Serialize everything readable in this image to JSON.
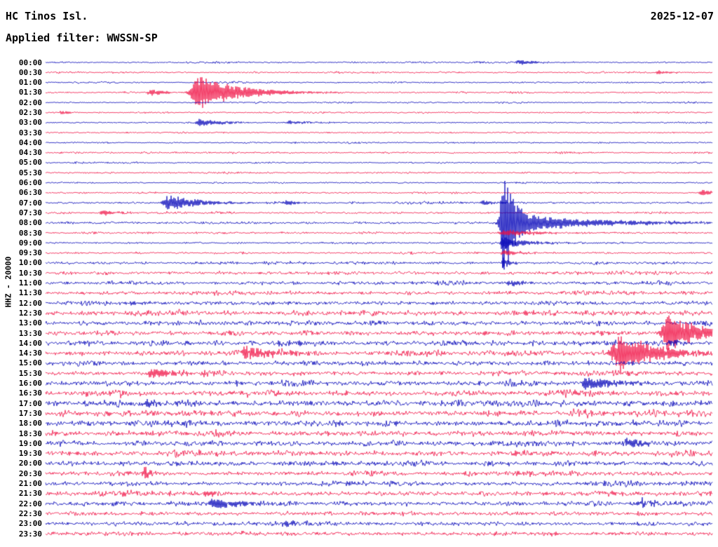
{
  "header": {
    "station": "HC Tinos Isl.",
    "date": "2025-12-07",
    "filter_label": "Applied filter: WWSSN-SP"
  },
  "axis": {
    "left_label": "HHZ - 20000"
  },
  "chart_data": {
    "type": "line",
    "subtype": "helicorder-seismogram",
    "title": "HC Tinos Isl. HHZ helicorder, 2025-12-07, WWSSN-SP filter",
    "rows": 48,
    "minutes_per_row": 30,
    "row_labels": [
      "00:00",
      "00:30",
      "01:00",
      "01:30",
      "02:00",
      "02:30",
      "03:00",
      "03:30",
      "04:00",
      "04:30",
      "05:00",
      "05:30",
      "06:00",
      "06:30",
      "07:00",
      "07:30",
      "08:00",
      "08:30",
      "09:00",
      "09:30",
      "10:00",
      "10:30",
      "11:00",
      "11:30",
      "12:00",
      "12:30",
      "13:00",
      "13:30",
      "14:00",
      "14:30",
      "15:00",
      "15:30",
      "16:00",
      "16:30",
      "17:00",
      "17:30",
      "18:00",
      "18:30",
      "19:00",
      "19:30",
      "20:00",
      "20:30",
      "21:00",
      "21:30",
      "22:00",
      "22:30",
      "23:00",
      "23:30"
    ],
    "colors": {
      "even": "#0000b8",
      "odd": "#f01044"
    },
    "noise_amp": [
      1.0,
      1.1,
      1.0,
      1.1,
      1.0,
      1.1,
      1.0,
      1.0,
      1.0,
      1.1,
      1.0,
      1.1,
      1.0,
      1.1,
      1.3,
      1.3,
      1.4,
      1.4,
      1.3,
      1.3,
      1.8,
      2.2,
      2.2,
      2.6,
      2.8,
      3.2,
      3.0,
      3.2,
      3.4,
      3.2,
      3.2,
      3.0,
      3.4,
      3.6,
      3.9,
      3.9,
      3.7,
      3.7,
      3.5,
      3.5,
      3.2,
      3.2,
      3.0,
      3.2,
      3.0,
      2.8,
      2.7,
      2.6
    ],
    "events": [
      {
        "row": 0,
        "x": 0.71,
        "amp": 3.5,
        "rise": 4,
        "decay": 25
      },
      {
        "row": 1,
        "x": 0.92,
        "amp": 2.5,
        "rise": 4,
        "decay": 18
      },
      {
        "row": 3,
        "x": 0.158,
        "amp": 5,
        "rise": 4,
        "decay": 20
      },
      {
        "row": 3,
        "x": 0.231,
        "amp": 24,
        "rise": 8,
        "decay": 55
      },
      {
        "row": 5,
        "x": 0.024,
        "amp": 3,
        "rise": 2,
        "decay": 10
      },
      {
        "row": 6,
        "x": 0.232,
        "amp": 5,
        "rise": 5,
        "decay": 40
      },
      {
        "row": 6,
        "x": 0.368,
        "amp": 2.5,
        "rise": 4,
        "decay": 25
      },
      {
        "row": 13,
        "x": 0.985,
        "amp": 4.5,
        "rise": 3,
        "decay": 15
      },
      {
        "row": 14,
        "x": 0.184,
        "amp": 11,
        "rise": 5,
        "decay": 45
      },
      {
        "row": 14,
        "x": 0.361,
        "amp": 3,
        "rise": 4,
        "decay": 20
      },
      {
        "row": 14,
        "x": 0.657,
        "amp": 3.5,
        "rise": 4,
        "decay": 18
      },
      {
        "row": 15,
        "x": 0.086,
        "amp": 4.5,
        "rise": 3,
        "decay": 15
      },
      {
        "row": 16,
        "x": 0.687,
        "amp": 75,
        "rise": 3,
        "decay": 14
      },
      {
        "row": 16,
        "x": 0.687,
        "amp": 13,
        "rise": 6,
        "decay": 120
      },
      {
        "row": 17,
        "x": 0.687,
        "amp": 5,
        "rise": 4,
        "decay": 50
      },
      {
        "row": 18,
        "x": 0.687,
        "amp": 9,
        "rise": 3,
        "decay": 30
      },
      {
        "row": 19,
        "x": 0.687,
        "amp": 4,
        "rise": 3,
        "decay": 25
      },
      {
        "row": 20,
        "x": 0.687,
        "amp": 8,
        "rise": 2,
        "decay": 8
      },
      {
        "row": 22,
        "x": 0.694,
        "amp": 5,
        "rise": 2,
        "decay": 20
      },
      {
        "row": 24,
        "x": 0.129,
        "amp": 4,
        "rise": 2,
        "decay": 15
      },
      {
        "row": 27,
        "x": 0.933,
        "amp": 28,
        "rise": 6,
        "decay": 45
      },
      {
        "row": 28,
        "x": 0.933,
        "amp": 4,
        "rise": 4,
        "decay": 25
      },
      {
        "row": 29,
        "x": 0.302,
        "amp": 9,
        "rise": 6,
        "decay": 40
      },
      {
        "row": 29,
        "x": 0.862,
        "amp": 26,
        "rise": 8,
        "decay": 55
      },
      {
        "row": 31,
        "x": 0.158,
        "amp": 7,
        "rise": 4,
        "decay": 30
      },
      {
        "row": 32,
        "x": 0.813,
        "amp": 9,
        "rise": 6,
        "decay": 45
      },
      {
        "row": 34,
        "x": 0.152,
        "amp": 5,
        "rise": 4,
        "decay": 25
      },
      {
        "row": 38,
        "x": 0.871,
        "amp": 6,
        "rise": 4,
        "decay": 30
      },
      {
        "row": 41,
        "x": 0.149,
        "amp": 11,
        "rise": 2,
        "decay": 8
      },
      {
        "row": 43,
        "x": 0.24,
        "amp": 4,
        "rise": 3,
        "decay": 15
      },
      {
        "row": 44,
        "x": 0.254,
        "amp": 8,
        "rise": 5,
        "decay": 35
      },
      {
        "row": 44,
        "x": 0.891,
        "amp": 6,
        "rise": 4,
        "decay": 25
      },
      {
        "row": 46,
        "x": 0.36,
        "amp": 5,
        "rise": 4,
        "decay": 20
      }
    ]
  }
}
